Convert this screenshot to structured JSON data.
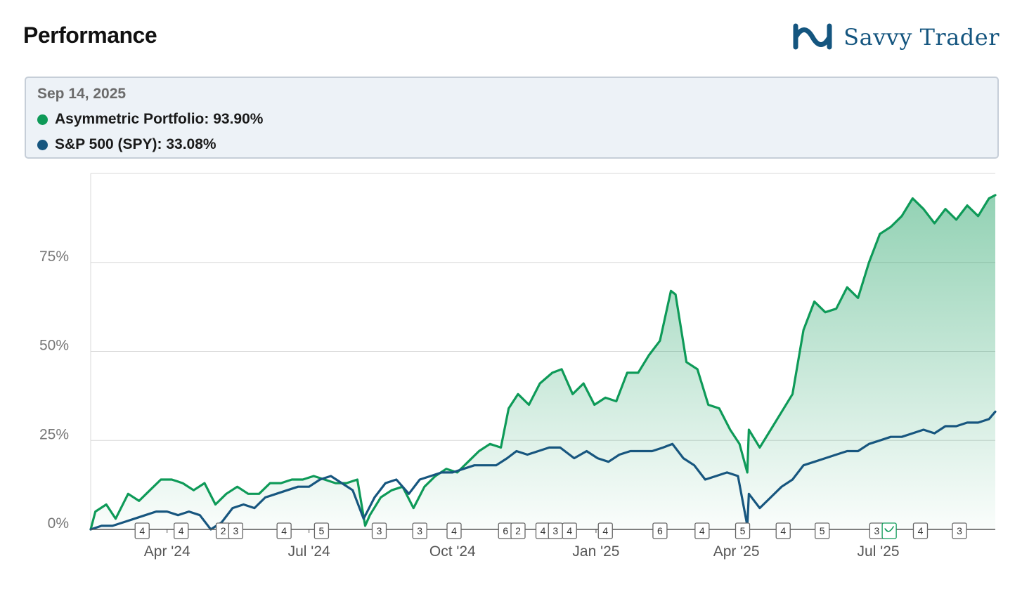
{
  "header": {
    "title": "Performance",
    "brand_name": "Savvy Trader",
    "brand_icon": "infinity-logo-icon"
  },
  "tooltip": {
    "date": "Sep 14, 2025",
    "rows": [
      {
        "label": "Asymmetric Portfolio: 93.90%",
        "color": "#0e9a58"
      },
      {
        "label": "S&P 500 (SPY): 33.08%",
        "color": "#17567f"
      }
    ]
  },
  "colors": {
    "portfolio": "#0e9a58",
    "benchmark": "#17567f",
    "grid": "#d9d9d9",
    "axis": "#555555",
    "brand": "#14557f"
  },
  "chart_data": {
    "type": "line",
    "x_range": [
      "2024-02-12",
      "2025-09-14"
    ],
    "ylim": [
      0,
      100
    ],
    "y_ticks": [
      {
        "value": 0,
        "label": "0%"
      },
      {
        "value": 25,
        "label": "25%"
      },
      {
        "value": 50,
        "label": "50%"
      },
      {
        "value": 75,
        "label": "75%"
      }
    ],
    "x_ticks": [
      {
        "date": "2024-04-01",
        "label": "Apr '24"
      },
      {
        "date": "2024-07-01",
        "label": "Jul '24"
      },
      {
        "date": "2024-10-01",
        "label": "Oct '24"
      },
      {
        "date": "2025-01-01",
        "label": "Jan '25"
      },
      {
        "date": "2025-04-01",
        "label": "Apr '25"
      },
      {
        "date": "2025-07-01",
        "label": "Jul '25"
      }
    ],
    "grid": true,
    "series": [
      {
        "name": "Asymmetric Portfolio",
        "color": "#0e9a58",
        "filled": true,
        "points": [
          [
            "2024-02-12",
            0
          ],
          [
            "2024-02-15",
            5
          ],
          [
            "2024-02-22",
            7
          ],
          [
            "2024-02-28",
            3
          ],
          [
            "2024-03-07",
            10
          ],
          [
            "2024-03-14",
            8
          ],
          [
            "2024-03-21",
            11
          ],
          [
            "2024-03-28",
            14
          ],
          [
            "2024-04-04",
            14
          ],
          [
            "2024-04-11",
            13
          ],
          [
            "2024-04-18",
            11
          ],
          [
            "2024-04-25",
            13
          ],
          [
            "2024-05-02",
            7
          ],
          [
            "2024-05-09",
            10
          ],
          [
            "2024-05-16",
            12
          ],
          [
            "2024-05-23",
            10
          ],
          [
            "2024-05-30",
            10
          ],
          [
            "2024-06-06",
            13
          ],
          [
            "2024-06-13",
            13
          ],
          [
            "2024-06-20",
            14
          ],
          [
            "2024-06-27",
            14
          ],
          [
            "2024-07-04",
            15
          ],
          [
            "2024-07-11",
            14
          ],
          [
            "2024-07-18",
            13
          ],
          [
            "2024-07-25",
            13
          ],
          [
            "2024-08-01",
            14
          ],
          [
            "2024-08-06",
            1
          ],
          [
            "2024-08-09",
            4
          ],
          [
            "2024-08-16",
            9
          ],
          [
            "2024-08-23",
            11
          ],
          [
            "2024-08-30",
            12
          ],
          [
            "2024-09-06",
            6
          ],
          [
            "2024-09-13",
            12
          ],
          [
            "2024-09-20",
            15
          ],
          [
            "2024-09-27",
            17
          ],
          [
            "2024-10-04",
            16
          ],
          [
            "2024-10-11",
            19
          ],
          [
            "2024-10-18",
            22
          ],
          [
            "2024-10-25",
            24
          ],
          [
            "2024-11-01",
            23
          ],
          [
            "2024-11-06",
            34
          ],
          [
            "2024-11-12",
            38
          ],
          [
            "2024-11-19",
            35
          ],
          [
            "2024-11-26",
            41
          ],
          [
            "2024-12-04",
            44
          ],
          [
            "2024-12-10",
            45
          ],
          [
            "2024-12-17",
            38
          ],
          [
            "2024-12-24",
            41
          ],
          [
            "2024-12-31",
            35
          ],
          [
            "2025-01-07",
            37
          ],
          [
            "2025-01-14",
            36
          ],
          [
            "2025-01-21",
            44
          ],
          [
            "2025-01-28",
            44
          ],
          [
            "2025-02-04",
            49
          ],
          [
            "2025-02-11",
            53
          ],
          [
            "2025-02-18",
            67
          ],
          [
            "2025-02-21",
            66
          ],
          [
            "2025-02-28",
            47
          ],
          [
            "2025-03-07",
            45
          ],
          [
            "2025-03-14",
            35
          ],
          [
            "2025-03-21",
            34
          ],
          [
            "2025-03-28",
            28
          ],
          [
            "2025-04-03",
            24
          ],
          [
            "2025-04-08",
            16
          ],
          [
            "2025-04-09",
            28
          ],
          [
            "2025-04-16",
            23
          ],
          [
            "2025-04-23",
            28
          ],
          [
            "2025-04-30",
            33
          ],
          [
            "2025-05-07",
            38
          ],
          [
            "2025-05-14",
            56
          ],
          [
            "2025-05-21",
            64
          ],
          [
            "2025-05-28",
            61
          ],
          [
            "2025-06-04",
            62
          ],
          [
            "2025-06-11",
            68
          ],
          [
            "2025-06-18",
            65
          ],
          [
            "2025-06-25",
            75
          ],
          [
            "2025-07-02",
            83
          ],
          [
            "2025-07-09",
            85
          ],
          [
            "2025-07-16",
            88
          ],
          [
            "2025-07-23",
            93
          ],
          [
            "2025-07-30",
            90
          ],
          [
            "2025-08-06",
            86
          ],
          [
            "2025-08-13",
            90
          ],
          [
            "2025-08-20",
            87
          ],
          [
            "2025-08-27",
            91
          ],
          [
            "2025-09-03",
            88
          ],
          [
            "2025-09-10",
            93
          ],
          [
            "2025-09-14",
            93.9
          ]
        ]
      },
      {
        "name": "S&P 500 (SPY)",
        "color": "#17567f",
        "filled": false,
        "points": [
          [
            "2024-02-12",
            0
          ],
          [
            "2024-02-19",
            1
          ],
          [
            "2024-02-26",
            1
          ],
          [
            "2024-03-04",
            2
          ],
          [
            "2024-03-11",
            3
          ],
          [
            "2024-03-18",
            4
          ],
          [
            "2024-03-25",
            5
          ],
          [
            "2024-04-01",
            5
          ],
          [
            "2024-04-08",
            4
          ],
          [
            "2024-04-15",
            5
          ],
          [
            "2024-04-22",
            4
          ],
          [
            "2024-04-29",
            0
          ],
          [
            "2024-05-06",
            2
          ],
          [
            "2024-05-13",
            6
          ],
          [
            "2024-05-20",
            7
          ],
          [
            "2024-05-27",
            6
          ],
          [
            "2024-06-03",
            9
          ],
          [
            "2024-06-10",
            10
          ],
          [
            "2024-06-17",
            11
          ],
          [
            "2024-06-24",
            12
          ],
          [
            "2024-07-01",
            12
          ],
          [
            "2024-07-08",
            14
          ],
          [
            "2024-07-15",
            15
          ],
          [
            "2024-07-22",
            13
          ],
          [
            "2024-07-29",
            11
          ],
          [
            "2024-08-05",
            3
          ],
          [
            "2024-08-12",
            9
          ],
          [
            "2024-08-19",
            13
          ],
          [
            "2024-08-26",
            14
          ],
          [
            "2024-09-03",
            10
          ],
          [
            "2024-09-10",
            14
          ],
          [
            "2024-09-17",
            15
          ],
          [
            "2024-09-24",
            16
          ],
          [
            "2024-10-01",
            16
          ],
          [
            "2024-10-08",
            17
          ],
          [
            "2024-10-15",
            18
          ],
          [
            "2024-10-22",
            18
          ],
          [
            "2024-10-29",
            18
          ],
          [
            "2024-11-05",
            20
          ],
          [
            "2024-11-11",
            22
          ],
          [
            "2024-11-18",
            21
          ],
          [
            "2024-11-25",
            22
          ],
          [
            "2024-12-02",
            23
          ],
          [
            "2024-12-09",
            23
          ],
          [
            "2024-12-18",
            20
          ],
          [
            "2024-12-26",
            22
          ],
          [
            "2025-01-02",
            20
          ],
          [
            "2025-01-09",
            19
          ],
          [
            "2025-01-16",
            21
          ],
          [
            "2025-01-23",
            22
          ],
          [
            "2025-01-30",
            22
          ],
          [
            "2025-02-06",
            22
          ],
          [
            "2025-02-13",
            23
          ],
          [
            "2025-02-19",
            24
          ],
          [
            "2025-02-26",
            20
          ],
          [
            "2025-03-05",
            18
          ],
          [
            "2025-03-12",
            14
          ],
          [
            "2025-03-19",
            15
          ],
          [
            "2025-03-26",
            16
          ],
          [
            "2025-04-02",
            15
          ],
          [
            "2025-04-08",
            1
          ],
          [
            "2025-04-09",
            10
          ],
          [
            "2025-04-16",
            6
          ],
          [
            "2025-04-23",
            9
          ],
          [
            "2025-04-30",
            12
          ],
          [
            "2025-05-07",
            14
          ],
          [
            "2025-05-14",
            18
          ],
          [
            "2025-05-21",
            19
          ],
          [
            "2025-05-28",
            20
          ],
          [
            "2025-06-04",
            21
          ],
          [
            "2025-06-11",
            22
          ],
          [
            "2025-06-18",
            22
          ],
          [
            "2025-06-25",
            24
          ],
          [
            "2025-07-02",
            25
          ],
          [
            "2025-07-09",
            26
          ],
          [
            "2025-07-16",
            26
          ],
          [
            "2025-07-23",
            27
          ],
          [
            "2025-07-30",
            28
          ],
          [
            "2025-08-06",
            27
          ],
          [
            "2025-08-13",
            29
          ],
          [
            "2025-08-20",
            29
          ],
          [
            "2025-08-27",
            30
          ],
          [
            "2025-09-03",
            30
          ],
          [
            "2025-09-10",
            31
          ],
          [
            "2025-09-14",
            33.08
          ]
        ]
      }
    ],
    "trade_markers": [
      {
        "date": "2024-03-16",
        "label": "4"
      },
      {
        "date": "2024-04-10",
        "label": "4"
      },
      {
        "date": "2024-05-07",
        "label": "2"
      },
      {
        "date": "2024-05-15",
        "label": "3"
      },
      {
        "date": "2024-06-15",
        "label": "4"
      },
      {
        "date": "2024-07-09",
        "label": "5"
      },
      {
        "date": "2024-08-15",
        "label": "3"
      },
      {
        "date": "2024-09-10",
        "label": "3"
      },
      {
        "date": "2024-10-02",
        "label": "4"
      },
      {
        "date": "2024-11-04",
        "label": "6"
      },
      {
        "date": "2024-11-12",
        "label": "2"
      },
      {
        "date": "2024-11-28",
        "label": "4"
      },
      {
        "date": "2024-12-06",
        "label": "3"
      },
      {
        "date": "2024-12-15",
        "label": "4"
      },
      {
        "date": "2025-01-07",
        "label": "4"
      },
      {
        "date": "2025-02-11",
        "label": "6"
      },
      {
        "date": "2025-03-10",
        "label": "4"
      },
      {
        "date": "2025-04-05",
        "label": "5"
      },
      {
        "date": "2025-05-01",
        "label": "4"
      },
      {
        "date": "2025-05-26",
        "label": "5"
      },
      {
        "date": "2025-06-30",
        "label": "3"
      },
      {
        "date": "2025-07-08",
        "label": "",
        "icon": "bird-icon",
        "highlight": true
      },
      {
        "date": "2025-07-28",
        "label": "4"
      },
      {
        "date": "2025-08-22",
        "label": "3"
      }
    ]
  }
}
